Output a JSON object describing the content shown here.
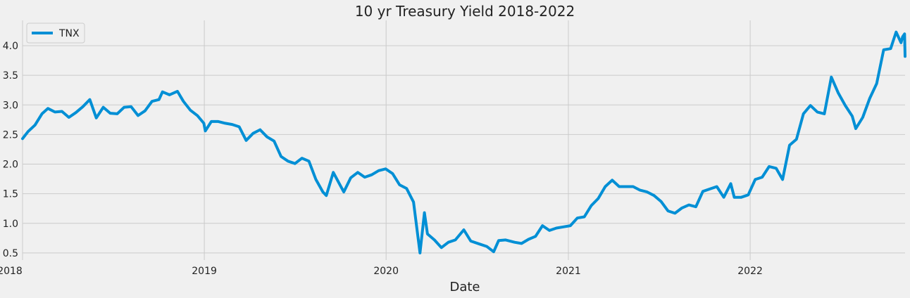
{
  "chart_data": {
    "type": "line",
    "title": "10 yr Treasury Yield 2018-2022",
    "xlabel": "Date",
    "ylabel": "",
    "xlim": [
      "2018-01-01",
      "2022-11-08"
    ],
    "ylim": [
      0.38,
      4.38
    ],
    "grid": true,
    "legend_position": "top-left",
    "x_ticks": [
      {
        "date": "2018-01-01",
        "label": "2018"
      },
      {
        "date": "2019-01-01",
        "label": "2019"
      },
      {
        "date": "2020-01-01",
        "label": "2020"
      },
      {
        "date": "2021-01-01",
        "label": "2021"
      },
      {
        "date": "2022-01-01",
        "label": "2022"
      }
    ],
    "y_ticks": [
      0.5,
      1.0,
      1.5,
      2.0,
      2.5,
      3.0,
      3.5,
      4.0
    ],
    "y_tick_labels": [
      "0.5",
      "1.0",
      "1.5",
      "2.0",
      "2.5",
      "3.0",
      "3.5",
      "4.0"
    ],
    "series": [
      {
        "name": "TNX",
        "color": "#008fd5",
        "points": [
          [
            "2018-01-01",
            2.43
          ],
          [
            "2018-01-12",
            2.55
          ],
          [
            "2018-01-26",
            2.66
          ],
          [
            "2018-02-09",
            2.85
          ],
          [
            "2018-02-21",
            2.94
          ],
          [
            "2018-03-07",
            2.88
          ],
          [
            "2018-03-21",
            2.89
          ],
          [
            "2018-04-04",
            2.79
          ],
          [
            "2018-04-18",
            2.87
          ],
          [
            "2018-05-02",
            2.97
          ],
          [
            "2018-05-16",
            3.09
          ],
          [
            "2018-05-29",
            2.78
          ],
          [
            "2018-06-12",
            2.96
          ],
          [
            "2018-06-26",
            2.86
          ],
          [
            "2018-07-10",
            2.85
          ],
          [
            "2018-07-24",
            2.96
          ],
          [
            "2018-08-07",
            2.97
          ],
          [
            "2018-08-21",
            2.82
          ],
          [
            "2018-09-04",
            2.9
          ],
          [
            "2018-09-18",
            3.06
          ],
          [
            "2018-10-02",
            3.09
          ],
          [
            "2018-10-09",
            3.22
          ],
          [
            "2018-10-23",
            3.17
          ],
          [
            "2018-11-08",
            3.23
          ],
          [
            "2018-11-20",
            3.06
          ],
          [
            "2018-12-04",
            2.91
          ],
          [
            "2018-12-18",
            2.82
          ],
          [
            "2018-12-31",
            2.69
          ],
          [
            "2019-01-03",
            2.56
          ],
          [
            "2019-01-15",
            2.72
          ],
          [
            "2019-01-29",
            2.72
          ],
          [
            "2019-02-12",
            2.69
          ],
          [
            "2019-02-26",
            2.67
          ],
          [
            "2019-03-12",
            2.63
          ],
          [
            "2019-03-26",
            2.4
          ],
          [
            "2019-04-09",
            2.52
          ],
          [
            "2019-04-23",
            2.58
          ],
          [
            "2019-05-07",
            2.46
          ],
          [
            "2019-05-21",
            2.39
          ],
          [
            "2019-06-04",
            2.13
          ],
          [
            "2019-06-18",
            2.05
          ],
          [
            "2019-07-02",
            2.01
          ],
          [
            "2019-07-16",
            2.1
          ],
          [
            "2019-07-30",
            2.05
          ],
          [
            "2019-08-13",
            1.74
          ],
          [
            "2019-08-27",
            1.53
          ],
          [
            "2019-09-03",
            1.47
          ],
          [
            "2019-09-17",
            1.86
          ],
          [
            "2019-10-01",
            1.64
          ],
          [
            "2019-10-08",
            1.53
          ],
          [
            "2019-10-22",
            1.77
          ],
          [
            "2019-11-05",
            1.86
          ],
          [
            "2019-11-19",
            1.78
          ],
          [
            "2019-12-03",
            1.82
          ],
          [
            "2019-12-17",
            1.89
          ],
          [
            "2019-12-31",
            1.92
          ],
          [
            "2020-01-14",
            1.84
          ],
          [
            "2020-01-28",
            1.65
          ],
          [
            "2020-02-11",
            1.59
          ],
          [
            "2020-02-25",
            1.36
          ],
          [
            "2020-03-09",
            0.5
          ],
          [
            "2020-03-18",
            1.18
          ],
          [
            "2020-03-24",
            0.82
          ],
          [
            "2020-04-07",
            0.72
          ],
          [
            "2020-04-21",
            0.59
          ],
          [
            "2020-05-05",
            0.68
          ],
          [
            "2020-05-19",
            0.72
          ],
          [
            "2020-06-05",
            0.89
          ],
          [
            "2020-06-19",
            0.7
          ],
          [
            "2020-07-07",
            0.65
          ],
          [
            "2020-07-21",
            0.61
          ],
          [
            "2020-08-04",
            0.52
          ],
          [
            "2020-08-14",
            0.71
          ],
          [
            "2020-08-28",
            0.72
          ],
          [
            "2020-09-15",
            0.68
          ],
          [
            "2020-09-29",
            0.66
          ],
          [
            "2020-10-13",
            0.73
          ],
          [
            "2020-10-27",
            0.78
          ],
          [
            "2020-11-10",
            0.96
          ],
          [
            "2020-11-24",
            0.88
          ],
          [
            "2020-12-08",
            0.92
          ],
          [
            "2020-12-22",
            0.94
          ],
          [
            "2021-01-05",
            0.96
          ],
          [
            "2021-01-19",
            1.09
          ],
          [
            "2021-02-02",
            1.11
          ],
          [
            "2021-02-16",
            1.3
          ],
          [
            "2021-03-02",
            1.42
          ],
          [
            "2021-03-16",
            1.62
          ],
          [
            "2021-03-30",
            1.73
          ],
          [
            "2021-04-13",
            1.62
          ],
          [
            "2021-04-27",
            1.62
          ],
          [
            "2021-05-11",
            1.62
          ],
          [
            "2021-05-25",
            1.56
          ],
          [
            "2021-06-08",
            1.53
          ],
          [
            "2021-06-22",
            1.47
          ],
          [
            "2021-07-06",
            1.37
          ],
          [
            "2021-07-20",
            1.21
          ],
          [
            "2021-08-03",
            1.17
          ],
          [
            "2021-08-17",
            1.26
          ],
          [
            "2021-08-31",
            1.31
          ],
          [
            "2021-09-14",
            1.28
          ],
          [
            "2021-09-28",
            1.54
          ],
          [
            "2021-10-12",
            1.58
          ],
          [
            "2021-10-26",
            1.62
          ],
          [
            "2021-11-09",
            1.44
          ],
          [
            "2021-11-23",
            1.67
          ],
          [
            "2021-11-30",
            1.44
          ],
          [
            "2021-12-14",
            1.44
          ],
          [
            "2021-12-28",
            1.48
          ],
          [
            "2022-01-11",
            1.74
          ],
          [
            "2022-01-25",
            1.78
          ],
          [
            "2022-02-08",
            1.96
          ],
          [
            "2022-02-22",
            1.93
          ],
          [
            "2022-03-07",
            1.74
          ],
          [
            "2022-03-21",
            2.32
          ],
          [
            "2022-04-04",
            2.42
          ],
          [
            "2022-04-18",
            2.85
          ],
          [
            "2022-05-02",
            2.99
          ],
          [
            "2022-05-16",
            2.88
          ],
          [
            "2022-05-30",
            2.85
          ],
          [
            "2022-06-13",
            3.47
          ],
          [
            "2022-06-27",
            3.2
          ],
          [
            "2022-07-11",
            2.99
          ],
          [
            "2022-07-25",
            2.81
          ],
          [
            "2022-08-01",
            2.6
          ],
          [
            "2022-08-15",
            2.79
          ],
          [
            "2022-08-29",
            3.11
          ],
          [
            "2022-09-12",
            3.36
          ],
          [
            "2022-09-26",
            3.93
          ],
          [
            "2022-10-10",
            3.95
          ],
          [
            "2022-10-21",
            4.23
          ],
          [
            "2022-10-31",
            4.05
          ],
          [
            "2022-11-03",
            4.15
          ],
          [
            "2022-11-07",
            4.2
          ],
          [
            "2022-11-08",
            3.82
          ]
        ]
      }
    ]
  }
}
